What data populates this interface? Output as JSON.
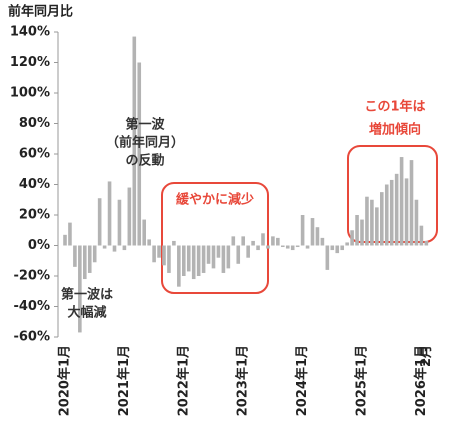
{
  "chart_data": {
    "type": "bar",
    "y_axis_title": "前年同月比",
    "categories": [
      "2020年1月",
      null,
      null,
      null,
      null,
      null,
      null,
      null,
      null,
      null,
      null,
      null,
      "2021年1月",
      null,
      null,
      null,
      null,
      null,
      null,
      null,
      null,
      null,
      null,
      null,
      "2022年1月",
      null,
      null,
      null,
      null,
      null,
      null,
      null,
      null,
      null,
      null,
      null,
      "2023年1月",
      null,
      null,
      null,
      null,
      null,
      null,
      null,
      null,
      null,
      null,
      null,
      "2024年1月",
      null,
      null,
      null,
      null,
      null,
      null,
      null,
      null,
      null,
      null,
      null,
      "2025年1月",
      null,
      null,
      null,
      null,
      null,
      null,
      null,
      null,
      null,
      null,
      null,
      "2026年1月",
      "2月"
    ],
    "values": [
      7,
      15,
      -14,
      -57,
      -22,
      -18,
      -11,
      31,
      -2,
      42,
      -4,
      30,
      -3,
      38,
      137,
      120,
      17,
      4,
      -11,
      -8,
      -13,
      -18,
      3,
      -27,
      -20,
      -17,
      -22,
      -20,
      -18,
      -12,
      -15,
      -8,
      -18,
      -15,
      6,
      -12,
      6,
      -8,
      3,
      -3,
      8,
      -2,
      6,
      5,
      -1,
      -2,
      -3,
      -1,
      20,
      -2,
      18,
      12,
      5,
      -16,
      -3,
      -5,
      -3,
      2,
      10,
      20,
      17,
      32,
      30,
      25,
      35,
      40,
      43,
      47,
      58,
      44,
      56,
      30,
      13,
      3
    ],
    "color": "#b3b3b3",
    "ylim": [
      -60,
      140
    ],
    "yticks": [
      {
        "value": -60,
        "label": "-60%"
      },
      {
        "value": -40,
        "label": "-40%"
      },
      {
        "value": -20,
        "label": "-20%"
      },
      {
        "value": 0,
        "label": "0%"
      },
      {
        "value": 20,
        "label": "20%"
      },
      {
        "value": 40,
        "label": "40%"
      },
      {
        "value": 60,
        "label": "60%"
      },
      {
        "value": 80,
        "label": "80%"
      },
      {
        "value": 100,
        "label": "100%"
      },
      {
        "value": 120,
        "label": "120%"
      },
      {
        "value": 140,
        "label": "140%"
      }
    ],
    "annotations": [
      {
        "lines": [
          "第一波",
          "（前年同月）",
          "の反動"
        ],
        "color": "#333333"
      },
      {
        "lines": [
          "第一波は",
          "大幅減"
        ],
        "color": "#333333"
      },
      {
        "lines": [
          "緩やかに減少"
        ],
        "color": "#e8483a"
      },
      {
        "lines": [
          "この1年は",
          "増加傾向"
        ],
        "color": "#e8483a"
      }
    ]
  }
}
